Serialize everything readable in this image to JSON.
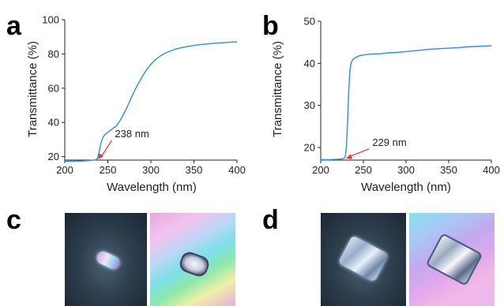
{
  "figure": {
    "panel_letters": [
      "a",
      "b",
      "c",
      "d"
    ]
  },
  "chart_data": [
    {
      "panel": "a",
      "type": "line",
      "xlabel": "Wavelength (nm)",
      "ylabel": "Transmittance (%)",
      "xlim": [
        200,
        400
      ],
      "ylim": [
        18,
        100
      ],
      "xticks": [
        200,
        250,
        300,
        350,
        400
      ],
      "yticks": [
        20,
        40,
        60,
        80,
        100
      ],
      "grid": false,
      "annotation": {
        "text": "238 nm",
        "x": 238,
        "y": 18.5
      },
      "series": [
        {
          "color": "#2f8ce0",
          "x": [
            200,
            210,
            220,
            230,
            236,
            238,
            240,
            242,
            244,
            246,
            248,
            252,
            256,
            260,
            264,
            268,
            272,
            276,
            280,
            284,
            288,
            292,
            296,
            300,
            305,
            310,
            315,
            320,
            325,
            330,
            335,
            340,
            345,
            350,
            360,
            370,
            380,
            390,
            395,
            400
          ],
          "y": [
            17.3,
            17.3,
            17.5,
            17.8,
            18.2,
            19,
            23,
            28,
            31,
            32.5,
            33.5,
            35,
            36.5,
            38,
            41,
            44.5,
            48.5,
            53,
            57.5,
            61.5,
            65,
            68.5,
            71.5,
            74,
            76.5,
            78.5,
            80,
            81.2,
            82.2,
            83,
            83.6,
            84.1,
            84.5,
            85,
            85.6,
            86.1,
            86.5,
            86.8,
            87,
            87
          ]
        }
      ]
    },
    {
      "panel": "b",
      "type": "line",
      "xlabel": "Wavelength (nm)",
      "ylabel": "Transmittance (%)",
      "xlim": [
        200,
        400
      ],
      "ylim": [
        17,
        50
      ],
      "xticks": [
        200,
        250,
        300,
        350,
        400
      ],
      "yticks": [
        20,
        30,
        40,
        50
      ],
      "grid": false,
      "annotation": {
        "text": "229 nm",
        "x": 229,
        "y": 17.4
      },
      "series": [
        {
          "color": "#2f8ce0",
          "x": [
            200,
            210,
            220,
            225,
            228,
            229,
            230,
            231,
            232,
            233,
            234,
            235,
            236,
            238,
            240,
            245,
            250,
            260,
            270,
            280,
            290,
            300,
            310,
            320,
            330,
            340,
            350,
            360,
            370,
            380,
            390,
            400
          ],
          "y": [
            17.1,
            17.1,
            17.2,
            17.3,
            17.5,
            18,
            20,
            24,
            29,
            34,
            37.5,
            39.5,
            40.3,
            41,
            41.3,
            41.8,
            42,
            42.2,
            42.3,
            42.5,
            42.6,
            42.8,
            43,
            43.2,
            43.4,
            43.5,
            43.6,
            43.7,
            43.9,
            44,
            44.1,
            44.2
          ]
        }
      ]
    }
  ]
}
